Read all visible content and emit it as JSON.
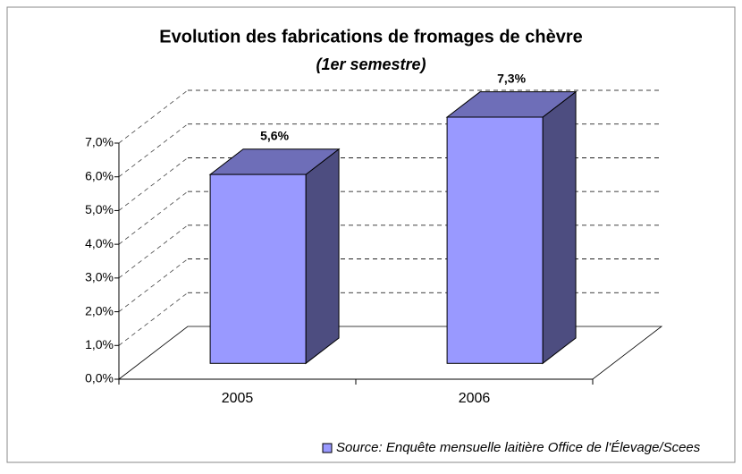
{
  "chart_data": {
    "type": "bar3d",
    "title": "Evolution des fabrications de fromages de chèvre",
    "subtitle": "(1er semestre)",
    "categories": [
      "2005",
      "2006"
    ],
    "series": [
      {
        "name": "Source: Enquête mensuelle laitière Office de l'Élevage/Scees",
        "color": "#9999ff",
        "values": [
          5.6,
          7.3
        ],
        "value_labels": [
          "5,6%",
          "7,3%"
        ]
      }
    ],
    "ylim": [
      0,
      7
    ],
    "yticks": [
      {
        "value": 0,
        "label": "0,0%"
      },
      {
        "value": 1,
        "label": "1,0%"
      },
      {
        "value": 2,
        "label": "2,0%"
      },
      {
        "value": 3,
        "label": "3,0%"
      },
      {
        "value": 4,
        "label": "4,0%"
      },
      {
        "value": 5,
        "label": "5,0%"
      },
      {
        "value": 6,
        "label": "6,0%"
      },
      {
        "value": 7,
        "label": "7,0%"
      }
    ],
    "grid": true
  }
}
